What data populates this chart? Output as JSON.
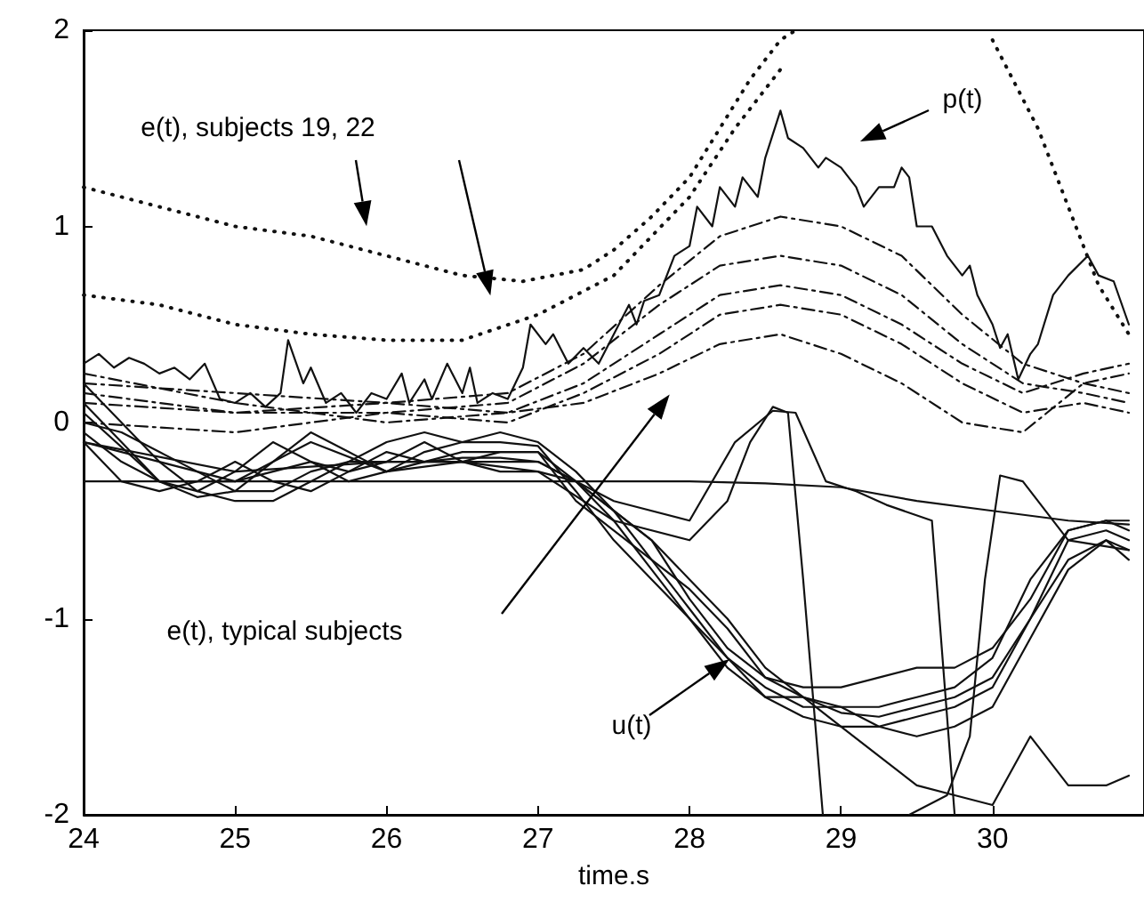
{
  "chart_data": {
    "type": "line",
    "xlabel": "time.s",
    "xlim": [
      24,
      31
    ],
    "ylim": [
      -2,
      2
    ],
    "xticks": [
      24,
      25,
      26,
      27,
      28,
      29,
      30
    ],
    "yticks": [
      -2,
      -1,
      0,
      1,
      2
    ],
    "grid": false,
    "marker": "none",
    "annotations": [
      "e(t), subjects 19, 22",
      "p(t)",
      "e(t), typical subjects",
      "u(t)"
    ],
    "series": [
      {
        "color": "#111111",
        "line_style": "solid",
        "x": [
          24.0,
          24.1,
          24.2,
          24.3,
          24.4,
          24.5,
          24.6,
          24.7,
          24.8,
          24.9,
          25.0,
          25.1,
          25.2,
          25.3,
          25.35,
          25.45,
          25.5,
          25.6,
          25.7,
          25.8,
          25.9,
          26.0,
          26.1,
          26.15,
          26.25,
          26.3,
          26.4,
          26.5,
          26.55,
          26.6,
          26.7,
          26.8,
          26.9,
          26.95,
          27.05,
          27.1,
          27.2,
          27.3,
          27.4,
          27.5,
          27.6,
          27.65,
          27.7,
          27.8,
          27.9,
          28.0,
          28.05,
          28.15,
          28.2,
          28.3,
          28.35,
          28.45,
          28.5,
          28.6,
          28.65,
          28.75,
          28.85,
          28.9,
          29.0,
          29.1,
          29.15,
          29.25,
          29.35,
          29.4,
          29.45,
          29.5,
          29.6,
          29.7,
          29.8,
          29.85,
          29.9,
          30.0,
          30.05,
          30.1,
          30.17,
          30.25,
          30.3,
          30.4,
          30.5,
          30.63,
          30.7,
          30.8,
          30.9
        ],
        "values": [
          0.3,
          0.35,
          0.28,
          0.33,
          0.3,
          0.25,
          0.28,
          0.22,
          0.3,
          0.12,
          0.1,
          0.15,
          0.08,
          0.15,
          0.42,
          0.2,
          0.28,
          0.1,
          0.15,
          0.05,
          0.15,
          0.12,
          0.25,
          0.1,
          0.22,
          0.12,
          0.3,
          0.15,
          0.28,
          0.1,
          0.15,
          0.12,
          0.28,
          0.5,
          0.4,
          0.45,
          0.3,
          0.38,
          0.3,
          0.45,
          0.6,
          0.5,
          0.62,
          0.65,
          0.85,
          0.9,
          1.1,
          1.0,
          1.2,
          1.1,
          1.25,
          1.15,
          1.35,
          1.59,
          1.45,
          1.4,
          1.3,
          1.35,
          1.3,
          1.2,
          1.1,
          1.2,
          1.2,
          1.3,
          1.25,
          1.0,
          1.0,
          0.85,
          0.75,
          0.8,
          0.65,
          0.5,
          0.38,
          0.45,
          0.22,
          0.35,
          0.4,
          0.65,
          0.75,
          0.85,
          0.75,
          0.72,
          0.5
        ]
      },
      {
        "color": "#111111",
        "line_style": "dotted",
        "x": [
          24,
          24.5,
          25,
          25.5,
          26,
          26.5,
          26.9,
          27.3,
          27.5,
          27.75,
          28,
          28.2,
          28.4,
          28.6,
          28.7
        ],
        "values": [
          1.2,
          1.1,
          1.0,
          0.95,
          0.85,
          0.75,
          0.72,
          0.78,
          0.88,
          1.05,
          1.25,
          1.5,
          1.75,
          1.95,
          2.0
        ]
      },
      {
        "color": "#111111",
        "line_style": "dotted",
        "x": [
          24,
          24.5,
          25,
          25.5,
          26,
          26.5,
          27,
          27.5,
          28,
          28.3,
          28.6,
          28.8,
          29.95,
          30.0,
          30.3,
          30.5,
          30.7,
          30.9
        ],
        "values": [
          0.65,
          0.6,
          0.5,
          0.45,
          0.42,
          0.42,
          0.55,
          0.75,
          1.15,
          1.5,
          1.8,
          null,
          null,
          1.95,
          1.5,
          1.1,
          0.7,
          0.45
        ]
      },
      {
        "color": "#111111",
        "line_style": "dashed",
        "x": [
          24,
          25,
          26,
          26.8,
          27.3,
          27.8,
          28.2,
          28.6,
          29,
          29.4,
          29.8,
          30.2,
          30.6,
          30.9
        ],
        "values": [
          0.2,
          0.15,
          0.1,
          0.15,
          0.35,
          0.7,
          0.95,
          1.05,
          1.0,
          0.85,
          0.55,
          0.3,
          0.2,
          0.15
        ]
      },
      {
        "color": "#111111",
        "line_style": "dashed",
        "x": [
          24,
          25,
          26,
          26.8,
          27.3,
          27.8,
          28.2,
          28.6,
          29,
          29.4,
          29.8,
          30.2,
          30.6,
          30.9
        ],
        "values": [
          0.1,
          0.05,
          0.05,
          0.1,
          0.3,
          0.6,
          0.8,
          0.85,
          0.8,
          0.65,
          0.4,
          0.2,
          0.15,
          0.1
        ]
      },
      {
        "color": "#111111",
        "line_style": "dashed",
        "x": [
          24,
          25,
          26,
          26.8,
          27.3,
          27.8,
          28.2,
          28.6,
          29,
          29.4,
          29.8,
          30.2,
          30.6,
          30.9
        ],
        "values": [
          0.25,
          0.1,
          0.0,
          0.05,
          0.2,
          0.45,
          0.65,
          0.7,
          0.65,
          0.5,
          0.3,
          0.15,
          0.25,
          0.3
        ]
      },
      {
        "color": "#111111",
        "line_style": "dashed",
        "x": [
          24,
          25,
          26,
          26.8,
          27.3,
          27.8,
          28.2,
          28.6,
          29,
          29.4,
          29.8,
          30.2,
          30.6,
          30.9
        ],
        "values": [
          0.0,
          -0.05,
          0.05,
          0.0,
          0.15,
          0.35,
          0.55,
          0.6,
          0.55,
          0.4,
          0.2,
          0.05,
          0.1,
          0.05
        ]
      },
      {
        "color": "#111111",
        "line_style": "dashed",
        "x": [
          24,
          25,
          26,
          26.8,
          27.3,
          27.8,
          28.2,
          28.6,
          29,
          29.4,
          29.8,
          30.2,
          30.6,
          30.9
        ],
        "values": [
          0.15,
          0.05,
          0.1,
          0.05,
          0.1,
          0.25,
          0.4,
          0.45,
          0.35,
          0.2,
          0.0,
          -0.05,
          0.2,
          0.25
        ]
      },
      {
        "color": "#111111",
        "line_style": "solid",
        "x": [
          24,
          24.25,
          24.5,
          24.75,
          25,
          25.25,
          25.5,
          25.75,
          26,
          26.25,
          26.5,
          26.75,
          27,
          27.25,
          27.5,
          27.75,
          28,
          28.25,
          28.5,
          28.75,
          29,
          29.25,
          29.5,
          29.75,
          30,
          30.25,
          30.5,
          30.75,
          30.9
        ],
        "values": [
          -0.05,
          -0.2,
          -0.3,
          -0.35,
          -0.25,
          -0.1,
          -0.2,
          -0.3,
          -0.25,
          -0.15,
          -0.1,
          -0.1,
          -0.12,
          -0.35,
          -0.6,
          -0.8,
          -1.0,
          -1.2,
          -1.35,
          -1.45,
          -1.45,
          -1.45,
          -1.4,
          -1.35,
          -1.2,
          -0.8,
          -0.55,
          -0.5,
          -0.55
        ]
      },
      {
        "color": "#111111",
        "line_style": "solid",
        "x": [
          24,
          24.25,
          24.5,
          24.75,
          25,
          25.25,
          25.5,
          25.75,
          26,
          26.25,
          26.5,
          26.75,
          27,
          27.25,
          27.5,
          27.75,
          28,
          28.25,
          28.5,
          28.75,
          29,
          29.25,
          29.5,
          29.75,
          30,
          30.25,
          30.5,
          30.75,
          30.9
        ],
        "values": [
          0.1,
          -0.1,
          -0.3,
          -0.38,
          -0.35,
          -0.2,
          -0.05,
          -0.15,
          -0.25,
          -0.2,
          -0.15,
          -0.15,
          -0.15,
          -0.4,
          -0.55,
          -0.7,
          -0.85,
          -1.05,
          -1.3,
          -1.4,
          -1.48,
          -1.5,
          -1.45,
          -1.4,
          -1.3,
          -1.0,
          -0.7,
          -0.6,
          -0.65
        ]
      },
      {
        "color": "#111111",
        "line_style": "solid",
        "x": [
          24,
          24.25,
          24.5,
          24.75,
          25,
          25.25,
          25.5,
          25.75,
          26,
          26.25,
          26.5,
          26.75,
          27,
          27.25,
          27.5,
          27.75,
          28,
          28.25,
          28.5,
          28.75,
          29,
          29.25,
          29.5,
          29.75,
          30,
          30.25,
          30.5,
          30.75,
          30.9
        ],
        "values": [
          -0.1,
          -0.3,
          -0.35,
          -0.3,
          -0.2,
          -0.3,
          -0.35,
          -0.25,
          -0.15,
          -0.2,
          -0.18,
          -0.18,
          -0.2,
          -0.3,
          -0.5,
          -0.75,
          -1.0,
          -1.25,
          -1.4,
          -1.5,
          -1.55,
          -1.55,
          -1.5,
          -1.45,
          -1.35,
          -1.0,
          -0.6,
          -0.55,
          -0.6
        ]
      },
      {
        "color": "#111111",
        "line_style": "solid",
        "x": [
          24,
          24.25,
          24.5,
          24.75,
          25,
          25.25,
          25.5,
          25.75,
          26,
          26.25,
          26.5,
          26.75,
          27,
          27.25,
          27.5,
          27.75,
          28,
          28.25,
          28.5,
          28.75,
          29,
          29.25,
          29.5,
          29.75,
          30,
          30.25,
          30.5,
          30.75,
          30.9
        ],
        "values": [
          0.2,
          0.0,
          -0.2,
          -0.35,
          -0.4,
          -0.4,
          -0.3,
          -0.2,
          -0.1,
          -0.05,
          -0.1,
          -0.05,
          -0.1,
          -0.25,
          -0.45,
          -0.6,
          -0.9,
          -1.15,
          -1.3,
          -1.35,
          -1.35,
          -1.3,
          -1.25,
          -1.25,
          -1.15,
          -0.9,
          -0.55,
          -0.5,
          -0.5
        ]
      },
      {
        "color": "#111111",
        "line_style": "solid",
        "x": [
          24,
          24.25,
          24.5,
          24.75,
          25,
          25.25,
          25.5,
          25.75,
          26,
          26.25,
          26.5,
          26.75,
          27,
          27.25,
          27.5,
          27.75,
          28,
          28.25,
          28.5,
          28.75,
          29,
          29.25,
          29.5,
          29.75,
          30,
          30.25,
          30.5,
          30.75,
          30.9
        ],
        "values": [
          0.0,
          -0.05,
          -0.15,
          -0.25,
          -0.3,
          -0.25,
          -0.2,
          -0.25,
          -0.2,
          -0.1,
          -0.2,
          -0.25,
          -0.25,
          -0.3,
          -0.45,
          -0.7,
          -0.95,
          -1.2,
          -1.4,
          -1.4,
          -1.45,
          -1.55,
          -1.6,
          -1.55,
          -1.45,
          -1.1,
          -0.75,
          -0.6,
          -0.7
        ]
      },
      {
        "color": "#111111",
        "line_style": "solid",
        "x": [
          24,
          24.25,
          24.5,
          24.75,
          25,
          25.25,
          25.5,
          25.75,
          26,
          26.25,
          26.5,
          26.75,
          27,
          27.25,
          27.5,
          27.75,
          28,
          28.25,
          28.5,
          28.75,
          29,
          29.25,
          29.5,
          29.75,
          30,
          30.25,
          30.5,
          30.75,
          30.9
        ],
        "values": [
          -0.1,
          -0.15,
          -0.2,
          -0.25,
          -0.35,
          -0.35,
          -0.25,
          -0.2,
          -0.2,
          -0.2,
          -0.2,
          -0.15,
          -0.15,
          -0.3,
          -0.45,
          -0.6,
          -0.8,
          -1.0,
          -1.25,
          -1.4,
          -1.55,
          -1.7,
          -1.85,
          -1.9,
          -1.95,
          -1.6,
          -1.85,
          -1.85,
          -1.8
        ]
      },
      {
        "color": "#111111",
        "line_style": "solid",
        "x": [
          24,
          25,
          26,
          27,
          27.5,
          28,
          28.5,
          29,
          29.5,
          30,
          30.5,
          30.9
        ],
        "values": [
          -0.3,
          -0.3,
          -0.3,
          -0.3,
          -0.3,
          -0.3,
          -0.31,
          -0.33,
          -0.4,
          -0.45,
          -0.5,
          -0.52
        ]
      },
      {
        "color": "#111111",
        "line_style": "solid",
        "x": [
          24,
          24.5,
          25,
          25.5,
          26,
          26.5,
          27,
          27.5,
          28,
          28.25,
          28.4,
          28.55,
          28.65,
          28.75,
          28.88
        ],
        "values": [
          0.05,
          -0.3,
          -0.3,
          -0.1,
          -0.25,
          -0.2,
          -0.25,
          -0.5,
          -0.6,
          -0.4,
          -0.1,
          0.08,
          0.05,
          -0.8,
          -2.0
        ]
      },
      {
        "color": "#111111",
        "line_style": "solid",
        "x": [
          24,
          25,
          26,
          27,
          27.5,
          28,
          28.3,
          28.55,
          28.7,
          28.9,
          29.1,
          29.3,
          29.6,
          29.75
        ],
        "values": [
          -0.1,
          -0.25,
          -0.2,
          -0.2,
          -0.4,
          -0.5,
          -0.1,
          0.06,
          0.05,
          -0.3,
          -0.35,
          -0.42,
          -0.5,
          -2.0
        ]
      },
      {
        "color": "#111111",
        "line_style": "solid",
        "x": [
          29.45,
          29.7,
          29.85,
          29.95,
          30.05,
          30.2,
          30.5,
          30.9
        ],
        "values": [
          -2.0,
          -1.9,
          -1.6,
          -0.8,
          -0.27,
          -0.3,
          -0.6,
          -0.65
        ]
      }
    ]
  }
}
